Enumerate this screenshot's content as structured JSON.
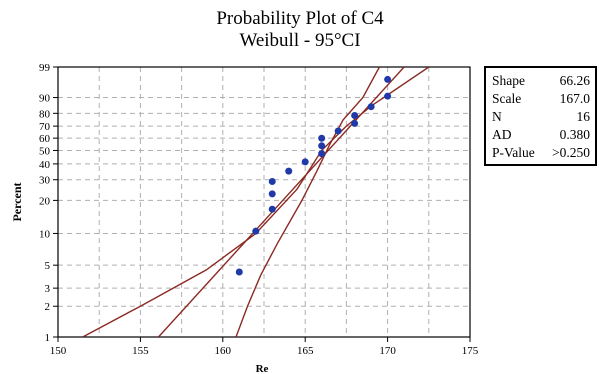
{
  "chart_data": {
    "type": "scatter",
    "title": "Probability Plot of C4",
    "subtitle": "Weibull - 95°CI",
    "xlabel": "Re",
    "ylabel": "Percent",
    "xlim": [
      150,
      175
    ],
    "x_ticks": [
      "150",
      "155",
      "160",
      "165",
      "170",
      "175"
    ],
    "y_scale": "weibull-probability",
    "y_ticks": [
      "1",
      "2",
      "3",
      "5",
      "10",
      "20",
      "30",
      "40",
      "50",
      "60",
      "70",
      "80",
      "90",
      "99"
    ],
    "grid": true,
    "points": [
      {
        "x": 161,
        "y": 4.3
      },
      {
        "x": 162,
        "y": 10.5
      },
      {
        "x": 163,
        "y": 16.7
      },
      {
        "x": 163,
        "y": 22.8
      },
      {
        "x": 163,
        "y": 29.0
      },
      {
        "x": 164,
        "y": 35.2
      },
      {
        "x": 165,
        "y": 41.4
      },
      {
        "x": 166,
        "y": 47.5
      },
      {
        "x": 166,
        "y": 53.7
      },
      {
        "x": 166,
        "y": 59.9
      },
      {
        "x": 167,
        "y": 66.0
      },
      {
        "x": 168,
        "y": 72.2
      },
      {
        "x": 168,
        "y": 78.4
      },
      {
        "x": 169,
        "y": 84.6
      },
      {
        "x": 170,
        "y": 90.7
      },
      {
        "x": 170,
        "y": 96.9
      }
    ],
    "fit_line": [
      {
        "x": 156.1,
        "y": 1
      },
      {
        "x": 171.0,
        "y": 99
      }
    ],
    "ci_lower": [
      {
        "x": 151.5,
        "y": 1
      },
      {
        "x": 155.0,
        "y": 2
      },
      {
        "x": 159.0,
        "y": 4.5
      },
      {
        "x": 162.0,
        "y": 10
      },
      {
        "x": 164.5,
        "y": 25
      },
      {
        "x": 166.0,
        "y": 50
      },
      {
        "x": 167.5,
        "y": 70
      },
      {
        "x": 169.0,
        "y": 85
      },
      {
        "x": 172.5,
        "y": 99
      }
    ],
    "ci_upper": [
      {
        "x": 160.8,
        "y": 1
      },
      {
        "x": 161.5,
        "y": 2
      },
      {
        "x": 162.3,
        "y": 4
      },
      {
        "x": 163.3,
        "y": 8
      },
      {
        "x": 164.8,
        "y": 20
      },
      {
        "x": 165.7,
        "y": 35
      },
      {
        "x": 166.5,
        "y": 55
      },
      {
        "x": 167.3,
        "y": 75
      },
      {
        "x": 168.5,
        "y": 90
      },
      {
        "x": 169.5,
        "y": 99
      }
    ],
    "colors": {
      "points": "#1f3aa8",
      "lines": "#8b2a23",
      "grid": "#b0b0b0"
    },
    "stats": [
      {
        "label": "Shape",
        "value": "66.26"
      },
      {
        "label": "Scale",
        "value": "167.0"
      },
      {
        "label": "N",
        "value": "16"
      },
      {
        "label": "AD",
        "value": "0.380"
      },
      {
        "label": "P-Value",
        "value": ">0.250"
      }
    ]
  }
}
